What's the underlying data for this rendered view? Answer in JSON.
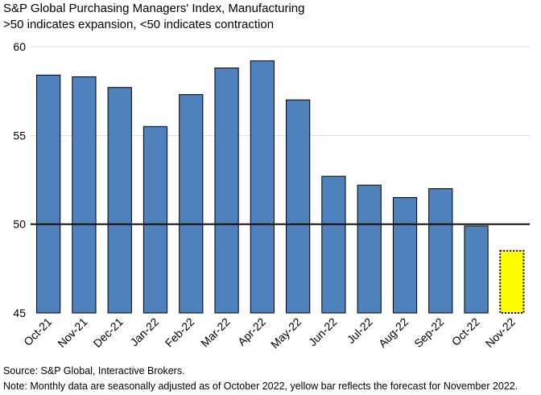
{
  "chart_data": {
    "type": "bar",
    "title": "S&P Global Purchasing Managers' Index, Manufacturing",
    "subtitle": ">50 indicates expansion, <50 indicates contraction",
    "categories": [
      "Oct-21",
      "Nov-21",
      "Dec-21",
      "Jan-22",
      "Feb-22",
      "Mar-22",
      "Apr-22",
      "May-22",
      "Jun-22",
      "Jul-22",
      "Aug-22",
      "Sep-22",
      "Oct-22",
      "Nov-22"
    ],
    "values": [
      58.4,
      58.3,
      57.7,
      55.5,
      57.3,
      58.8,
      59.2,
      57.0,
      52.7,
      52.2,
      51.5,
      52.0,
      49.9,
      48.5
    ],
    "forecast_index": 13,
    "ylim": [
      45,
      60
    ],
    "yticks": [
      45,
      50,
      55,
      60
    ],
    "reference_line": 50,
    "xlabel": "",
    "ylabel": "",
    "colors": {
      "bar": "#4f81bd",
      "bar_stroke": "#000000",
      "forecast": "#ffff00",
      "reference": "#000000",
      "grid": "#d9d9d9"
    }
  },
  "footer": {
    "source": "Source: S&P Global, Interactive Brokers.",
    "note": "Note: Monthly data are seasonally adjusted as of October 2022, yellow bar reflects the forecast for November 2022."
  }
}
